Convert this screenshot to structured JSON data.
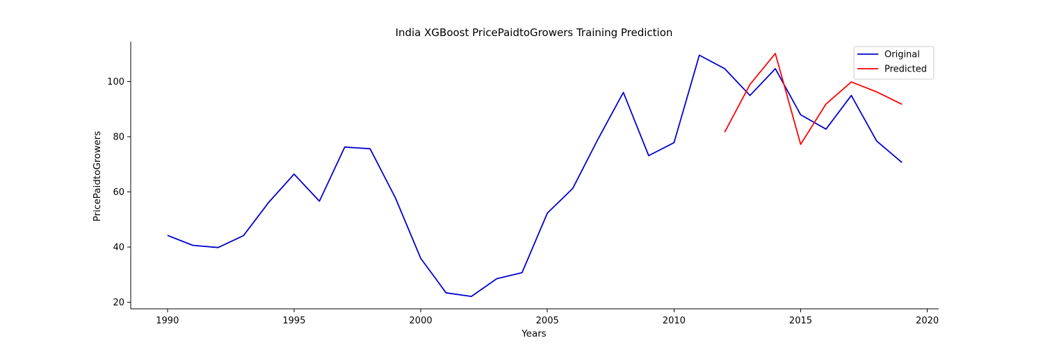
{
  "chart_data": {
    "type": "line",
    "title": "India XGBoost PricePaidtoGrowers Training Prediction",
    "xlabel": "Years",
    "ylabel": "PricePaidtoGrowers",
    "xlim": [
      1988.55,
      2020.45
    ],
    "ylim": [
      17.6,
      114.4
    ],
    "xticks": [
      1990,
      1995,
      2000,
      2005,
      2010,
      2015,
      2020
    ],
    "yticks": [
      20,
      40,
      60,
      80,
      100
    ],
    "legend_position": "top-right",
    "series": [
      {
        "name": "Original",
        "color": "#0000cd",
        "x": [
          1990,
          1991,
          1992,
          1993,
          1994,
          1995,
          1996,
          1997,
          1998,
          1999,
          2000,
          2001,
          2002,
          2003,
          2004,
          2005,
          2006,
          2007,
          2008,
          2009,
          2010,
          2011,
          2012,
          2013,
          2014,
          2015,
          2016,
          2017,
          2018,
          2019
        ],
        "values": [
          44.2,
          40.6,
          39.8,
          44.1,
          56.2,
          66.4,
          56.6,
          76.2,
          75.6,
          57.8,
          35.9,
          23.4,
          22.1,
          28.5,
          30.7,
          52.3,
          61.2,
          79.1,
          96.0,
          73.1,
          77.8,
          109.5,
          104.6,
          94.9,
          104.6,
          87.9,
          82.7,
          94.9,
          78.4,
          70.6
        ]
      },
      {
        "name": "Predicted",
        "color": "#ff0000",
        "x": [
          2012,
          2013,
          2014,
          2015,
          2016,
          2017,
          2018,
          2019
        ],
        "values": [
          81.6,
          98.9,
          110.1,
          77.2,
          91.8,
          99.8,
          96.2,
          91.7
        ]
      }
    ]
  }
}
